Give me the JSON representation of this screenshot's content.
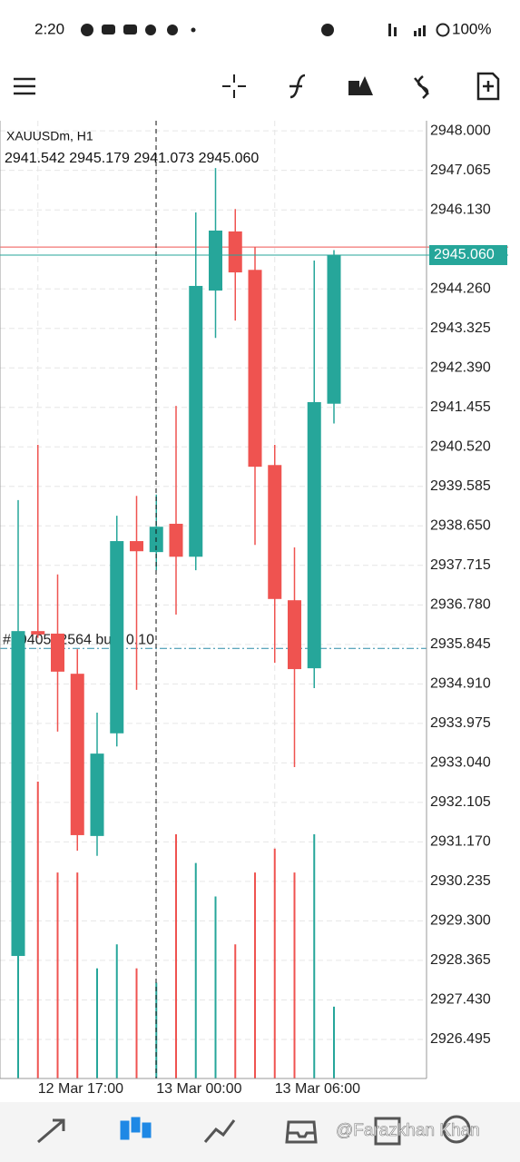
{
  "status_bar": {
    "time": "2:20",
    "battery": "100%"
  },
  "watermark": "@Farazkhan Khan",
  "chart_data": {
    "type": "candlestick",
    "title": "XAUUSDm, H1",
    "ohlc_labels": [
      "2941.542",
      "2945.179",
      "2941.073",
      "2945.060"
    ],
    "categories": [
      null,
      "12 Mar 17:00",
      null,
      null,
      null,
      null,
      null,
      "13 Mar 00:00",
      null,
      null,
      null,
      null,
      null,
      "13 Mar 06:00",
      null,
      null,
      null
    ],
    "open": [
      2928.47,
      2936.16,
      2936.1,
      2935.15,
      2931.31,
      2933.74,
      2938.29,
      2938.03,
      2938.7,
      2937.92,
      2944.22,
      2945.62,
      2944.71,
      2940.09,
      2936.89,
      2935.28,
      2941.542
    ],
    "high": [
      2939.26,
      2940.57,
      2937.5,
      2935.73,
      2934.23,
      2938.89,
      2939.36,
      2939.39,
      2941.49,
      2946.07,
      2947.12,
      2946.15,
      2945.25,
      2940.57,
      2938.14,
      2944.93,
      2945.179
    ],
    "low": [
      2927.89,
      2936.0,
      2933.78,
      2930.96,
      2930.84,
      2933.43,
      2934.77,
      2937.6,
      2936.55,
      2937.6,
      2943.1,
      2943.51,
      2938.2,
      2935.41,
      2932.94,
      2934.81,
      2941.073
    ],
    "close": [
      2936.16,
      2936.08,
      2935.2,
      2931.33,
      2933.26,
      2938.29,
      2938.05,
      2938.63,
      2937.92,
      2944.33,
      2945.64,
      2944.65,
      2940.05,
      2936.92,
      2935.26,
      2941.58,
      2945.06
    ],
    "volumes": [
      70,
      62,
      43,
      43,
      23,
      28,
      23,
      20,
      51,
      45,
      38,
      28,
      43,
      48,
      43,
      51,
      15
    ],
    "volume_ylim": [
      0,
      200
    ],
    "up_color": "#26a69a",
    "down_color": "#ef5350",
    "ylim": [
      2925.57,
      2948.24
    ],
    "yticks": [
      {
        "value": 2948.0,
        "label": "2948.000"
      },
      {
        "value": 2947.065,
        "label": "2947.065"
      },
      {
        "value": 2946.13,
        "label": "2946.130"
      },
      {
        "value": 2944.26,
        "label": "2944.260"
      },
      {
        "value": 2943.325,
        "label": "2943.325"
      },
      {
        "value": 2942.39,
        "label": "2942.390"
      },
      {
        "value": 2941.455,
        "label": "2941.455"
      },
      {
        "value": 2940.52,
        "label": "2940.520"
      },
      {
        "value": 2939.585,
        "label": "2939.585"
      },
      {
        "value": 2938.65,
        "label": "2938.650"
      },
      {
        "value": 2937.715,
        "label": "2937.715"
      },
      {
        "value": 2936.78,
        "label": "2936.780"
      },
      {
        "value": 2935.845,
        "label": "2935.845"
      },
      {
        "value": 2934.91,
        "label": "2934.910"
      },
      {
        "value": 2933.975,
        "label": "2933.975"
      },
      {
        "value": 2933.04,
        "label": "2933.040"
      },
      {
        "value": 2932.105,
        "label": "2932.105"
      },
      {
        "value": 2931.17,
        "label": "2931.170"
      },
      {
        "value": 2930.235,
        "label": "2930.235"
      },
      {
        "value": 2929.3,
        "label": "2929.300"
      },
      {
        "value": 2928.365,
        "label": "2928.365"
      },
      {
        "value": 2927.43,
        "label": "2927.430"
      },
      {
        "value": 2926.495,
        "label": "2926.495"
      }
    ],
    "grid": true,
    "ask_price": 2945.25,
    "current_price": {
      "value": 2945.06,
      "label": "2945.060"
    },
    "order_line": {
      "value": 2935.75,
      "label": "#2040562564 buy, 0.10"
    }
  }
}
